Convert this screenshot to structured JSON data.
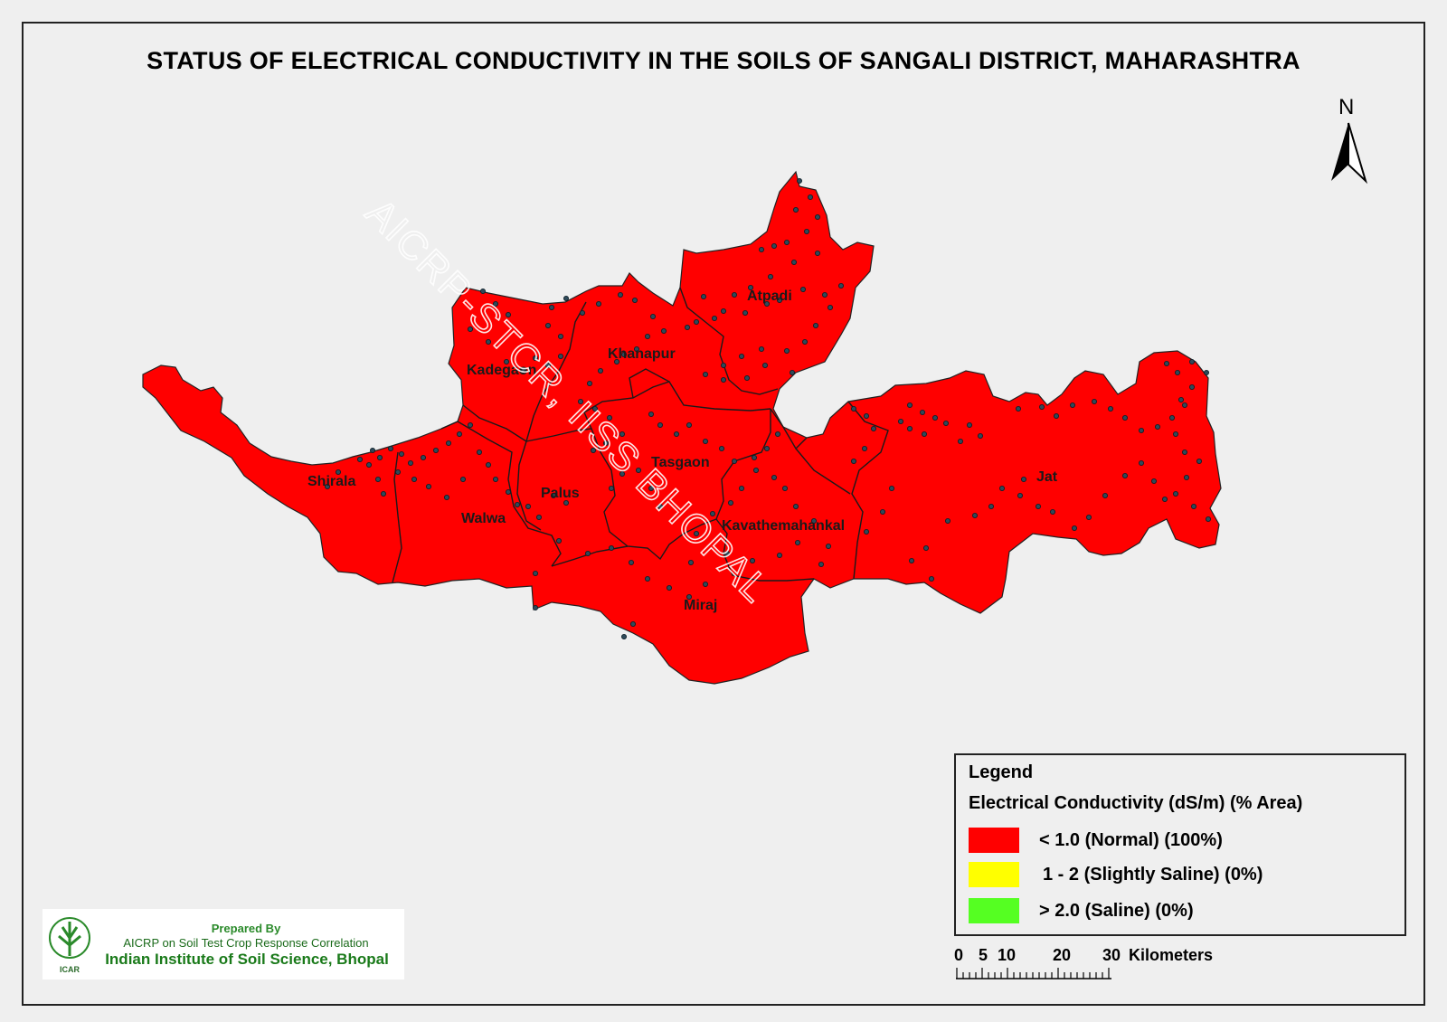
{
  "title": "STATUS OF ELECTRICAL CONDUCTIVITY IN THE SOILS OF SANGALI  DISTRICT, MAHARASHTRA",
  "north_label": "N",
  "watermark": "AICRP-STCR, IISS BHOPAL",
  "colors": {
    "normal": "#ff0000",
    "slightly_saline": "#ffff00",
    "saline": "#55ff22",
    "sample_point": "#2e4a5a"
  },
  "talukas": [
    {
      "name": "Atpadi"
    },
    {
      "name": "Khanapur"
    },
    {
      "name": "Kadegaon"
    },
    {
      "name": "Shirala"
    },
    {
      "name": "Walwa"
    },
    {
      "name": "Palus"
    },
    {
      "name": "Tasgaon"
    },
    {
      "name": "Kavathemahankal"
    },
    {
      "name": "Jat"
    },
    {
      "name": "Miraj"
    }
  ],
  "legend": {
    "title": "Legend",
    "subtitle": "Electrical Conductivity  (dS/m) (% Area)",
    "items": [
      {
        "label": "< 1.0 (Normal) (100%)",
        "color": "#ff0000",
        "area_percent": 100
      },
      {
        "label": "1 - 2 (Slightly Saline) (0%)",
        "color": "#ffff00",
        "area_percent": 0
      },
      {
        "label": "> 2.0 (Saline) (0%)",
        "color": "#55ff22",
        "area_percent": 0
      }
    ]
  },
  "credits": {
    "line1": "Prepared By",
    "line2": "AICRP on Soil Test Crop Response Correlation",
    "line3": "Indian Institute of Soil Science, Bhopal",
    "logo_text": "ICAR"
  },
  "scale": {
    "ticks": [
      "0",
      "5",
      "10",
      "20",
      "30"
    ],
    "unit": "Kilometers"
  }
}
